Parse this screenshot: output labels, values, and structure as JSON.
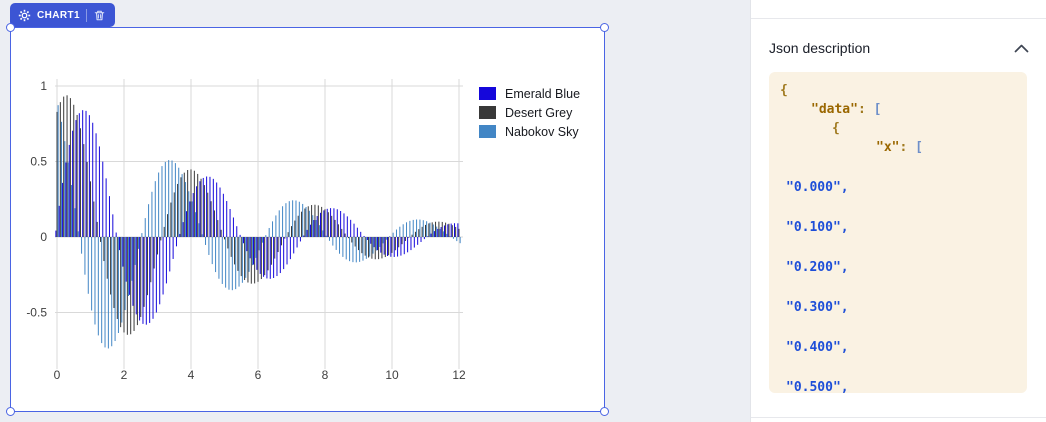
{
  "app": {
    "canvas_background": "#ECEEF3",
    "selection_color": "#4A64E4",
    "badge_color": "#3C55D4"
  },
  "chart_block": {
    "badge": {
      "label": "CHART1",
      "settings_icon": "gear",
      "delete_icon": "trash"
    }
  },
  "chart_data": {
    "type": "bar",
    "title": "",
    "x_start": 0,
    "x_end": 12,
    "x_step": 0.1,
    "ylim": [
      -0.88,
      1.04
    ],
    "grid": true,
    "legend_position": "right",
    "x_ticks": [
      {
        "label": "0",
        "value": 0
      },
      {
        "label": "2",
        "value": 2
      },
      {
        "label": "4",
        "value": 4
      },
      {
        "label": "6",
        "value": 6
      },
      {
        "label": "8",
        "value": 8
      },
      {
        "label": "10",
        "value": 10
      },
      {
        "label": "12",
        "value": 12
      }
    ],
    "y_ticks": [
      {
        "label": "1",
        "value": 1
      },
      {
        "label": "0.5",
        "value": 0.5
      },
      {
        "label": "0",
        "value": 0
      },
      {
        "label": "-0.5",
        "value": -0.5
      }
    ],
    "value_model": "y = amplitude * exp(-x / decay_tau) * cos(2*PI * (x - peak_x) / period), sampled at x = 0.0, 0.1, ..., 12.0",
    "series": [
      {
        "name": "Emerald Blue",
        "color": "#1507DB",
        "amplitude": 1.0,
        "decay_tau": 5.0,
        "period": 3.7,
        "peak_x": 0.9,
        "first_peak": 0.84,
        "first_min": -0.58
      },
      {
        "name": "Desert Grey",
        "color": "#383838",
        "amplitude": 1.0,
        "decay_tau": 5.0,
        "period": 3.7,
        "peak_x": 0.35,
        "first_peak": 0.93,
        "first_min": -0.64
      },
      {
        "name": "Nabokov Sky",
        "color": "#4286C5",
        "amplitude": 1.0,
        "decay_tau": 5.0,
        "period": 3.7,
        "peak_x": -0.3,
        "first_peak": 0.87,
        "first_min": -0.73
      }
    ]
  },
  "json_panel": {
    "title": "Json description",
    "collapse_icon": "chevron-up",
    "code_lines": [
      {
        "indent": "l0",
        "spaced": false,
        "tokens": [
          [
            "{",
            "brace"
          ]
        ]
      },
      {
        "indent": "l1",
        "spaced": false,
        "tokens": [
          [
            "\"data\"",
            "key"
          ],
          [
            ": ",
            "punct"
          ],
          [
            "[",
            "bracket"
          ]
        ]
      },
      {
        "indent": "l2",
        "spaced": false,
        "tokens": [
          [
            "{",
            "brace"
          ]
        ]
      },
      {
        "indent": "l3",
        "spaced": false,
        "tokens": [
          [
            "\"x\"",
            "key"
          ],
          [
            ": ",
            "punct"
          ],
          [
            "[",
            "bracket"
          ]
        ]
      },
      {
        "indent": "lv",
        "spaced": true,
        "tokens": [
          [
            "\"0.000\",",
            "string"
          ]
        ]
      },
      {
        "indent": "lv",
        "spaced": true,
        "tokens": [
          [
            "\"0.100\",",
            "string"
          ]
        ]
      },
      {
        "indent": "lv",
        "spaced": true,
        "tokens": [
          [
            "\"0.200\",",
            "string"
          ]
        ]
      },
      {
        "indent": "lv",
        "spaced": true,
        "tokens": [
          [
            "\"0.300\",",
            "string"
          ]
        ]
      },
      {
        "indent": "lv",
        "spaced": true,
        "tokens": [
          [
            "\"0.400\",",
            "string"
          ]
        ]
      },
      {
        "indent": "lv",
        "spaced": true,
        "tokens": [
          [
            "\"0.500\",",
            "string"
          ]
        ]
      }
    ]
  }
}
